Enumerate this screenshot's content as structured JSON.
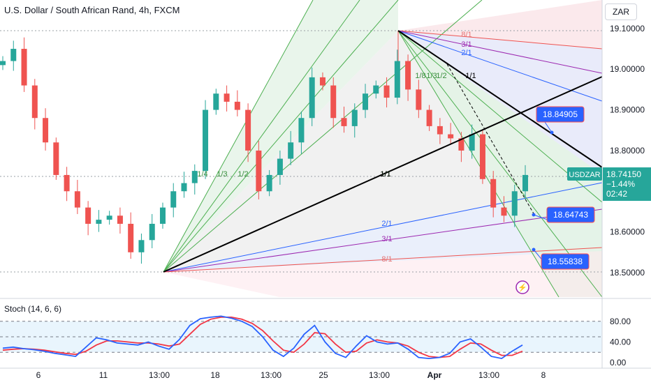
{
  "header": {
    "title": "U.S. Dollar / South African Rand, 4h, FXCM",
    "currency": "ZAR"
  },
  "stoch": {
    "label": "Stoch (14, 6, 6)"
  },
  "price_badge": {
    "symbol": "USDZAR",
    "price": "18.74150",
    "change": "−1.44%",
    "countdown": "02:42"
  },
  "callouts": [
    {
      "value": "18.84905"
    },
    {
      "value": "18.64743"
    },
    {
      "value": "18.55838"
    }
  ],
  "fan_labels": {
    "upper": [
      "1/4",
      "1/3",
      "1/2",
      "1/1"
    ],
    "top_right": [
      "8/1",
      "3/1",
      "2/1"
    ],
    "right_small": [
      "1/8",
      "1/3",
      "1/2",
      "1/1"
    ],
    "lower": [
      "1/1",
      "2/1",
      "3/1",
      "8/1"
    ]
  },
  "colors": {
    "up": "#26a69a",
    "down": "#ef5350",
    "blue": "#2962ff",
    "stoch_k": "#2962ff",
    "stoch_d": "#f23645",
    "accent_purple": "#9c27b0"
  },
  "chart_data": {
    "type": "candlestick",
    "title": "U.S. Dollar / South African Rand, 4h, FXCM",
    "x_tick_labels": [
      "6",
      "11",
      "13:00",
      "18",
      "13:00",
      "25",
      "13:00",
      "Apr",
      "13:00",
      "8"
    ],
    "y_tick_labels": [
      "19.10000",
      "19.00000",
      "18.90000",
      "18.80000",
      "18.70000",
      "18.60000",
      "18.50000"
    ],
    "ylim": [
      18.44,
      19.17
    ],
    "last_price": 18.7415,
    "close_series_approx": [
      19.02,
      19.05,
      18.96,
      18.88,
      18.82,
      18.74,
      18.7,
      18.66,
      18.62,
      18.63,
      18.64,
      18.62,
      18.55,
      18.58,
      18.62,
      18.66,
      18.7,
      18.72,
      18.75,
      18.9,
      18.94,
      18.92,
      18.9,
      18.8,
      18.7,
      18.74,
      18.78,
      18.82,
      18.88,
      18.98,
      18.96,
      18.88,
      18.86,
      18.9,
      18.94,
      18.96,
      18.93,
      19.02,
      18.95,
      18.9,
      18.86,
      18.84,
      18.83,
      18.8,
      18.84,
      18.73,
      18.66,
      18.64,
      18.7,
      18.74
    ],
    "stochastic": {
      "label": "Stoch (14, 6, 6)",
      "params": [
        14,
        6,
        6
      ],
      "ylim": [
        0,
        100
      ],
      "y_tick_labels": [
        "80.00",
        "40.00",
        "0.00"
      ],
      "levels": [
        80,
        50,
        20
      ],
      "k": [
        28,
        30,
        27,
        25,
        22,
        18,
        15,
        12,
        30,
        48,
        44,
        38,
        36,
        34,
        40,
        32,
        26,
        45,
        72,
        85,
        88,
        90,
        86,
        80,
        70,
        50,
        24,
        12,
        28,
        55,
        72,
        40,
        18,
        10,
        32,
        52,
        40,
        36,
        38,
        26,
        10,
        8,
        10,
        18,
        40,
        46,
        30,
        12,
        8,
        22,
        34
      ],
      "d": [
        24,
        26,
        27,
        26,
        24,
        21,
        18,
        16,
        22,
        34,
        42,
        42,
        40,
        38,
        38,
        36,
        32,
        36,
        55,
        74,
        84,
        88,
        88,
        84,
        76,
        62,
        42,
        24,
        20,
        36,
        58,
        56,
        36,
        20,
        22,
        38,
        44,
        40,
        38,
        32,
        20,
        12,
        10,
        12,
        26,
        38,
        36,
        24,
        14,
        14,
        22
      ]
    },
    "grid": true
  }
}
